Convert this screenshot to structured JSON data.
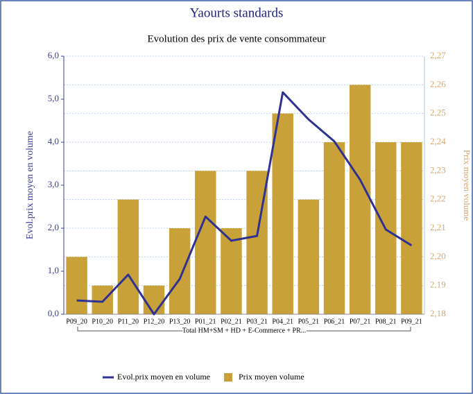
{
  "chart_data": {
    "type": "bar_line",
    "title": "Yaourts standards",
    "subtitle": "Evolution des prix de vente consommateur",
    "y_label": "Evol.prix moyen en volume",
    "y2_label": "Prix moyen volume",
    "x_group_label": "Total HM+SM + HD + E-Commerce + PR...",
    "categories": [
      "P09_20",
      "P10_20",
      "P11_20",
      "P12_20",
      "P13_20",
      "P01_21",
      "P02_21",
      "P03_21",
      "P04_21",
      "P05_21",
      "P06_21",
      "P07_21",
      "P08_21",
      "P09_21"
    ],
    "series": [
      {
        "name": "Evol.prix moyen en volume",
        "type": "line",
        "color": "#2e3192",
        "axis": "y",
        "values": [
          0.32,
          0.29,
          0.92,
          0.0,
          0.82,
          2.27,
          1.71,
          1.82,
          5.16,
          4.53,
          4.02,
          3.13,
          1.97,
          1.6
        ]
      },
      {
        "name": "Prix moyen volume",
        "type": "bar",
        "color": "#c9a139",
        "axis": "y2",
        "values": [
          2.2,
          2.19,
          2.22,
          2.19,
          2.21,
          2.23,
          2.21,
          2.23,
          2.25,
          2.22,
          2.24,
          2.26,
          2.24,
          2.24
        ]
      }
    ],
    "ylim": [
      0,
      6
    ],
    "yticks": [
      {
        "value": 0,
        "label": "0,0"
      },
      {
        "value": 1,
        "label": "1,0"
      },
      {
        "value": 2,
        "label": "2,0"
      },
      {
        "value": 3,
        "label": "3,0"
      },
      {
        "value": 4,
        "label": "4,0"
      },
      {
        "value": 5,
        "label": "5,0"
      },
      {
        "value": 6,
        "label": "6,0"
      }
    ],
    "y2lim": [
      2.18,
      2.27
    ],
    "y2ticks": [
      {
        "value": 2.18,
        "label": "2,18"
      },
      {
        "value": 2.19,
        "label": "2,19"
      },
      {
        "value": 2.2,
        "label": "2,20"
      },
      {
        "value": 2.21,
        "label": "2,21"
      },
      {
        "value": 2.22,
        "label": "2,22"
      },
      {
        "value": 2.23,
        "label": "2,23"
      },
      {
        "value": 2.24,
        "label": "2,24"
      },
      {
        "value": 2.25,
        "label": "2,25"
      },
      {
        "value": 2.26,
        "label": "2,26"
      },
      {
        "value": 2.27,
        "label": "2,27"
      }
    ],
    "grid": true,
    "legend": "bottom"
  }
}
